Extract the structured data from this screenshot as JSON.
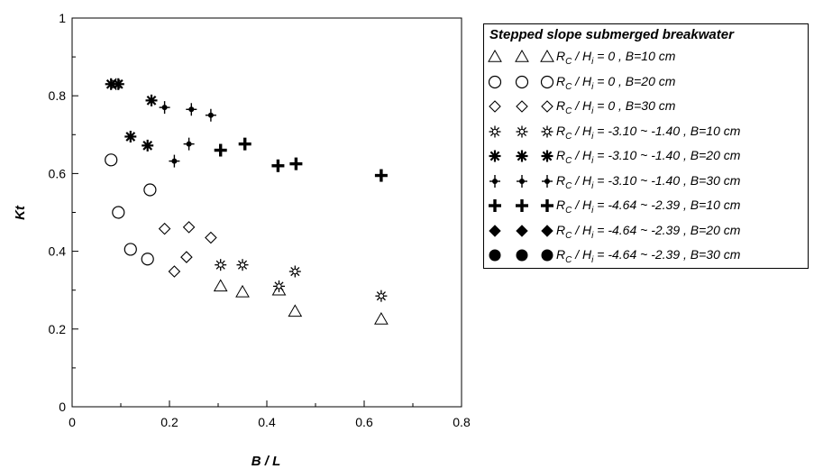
{
  "chart_data": {
    "type": "scatter",
    "title": "",
    "xlabel": "B / L",
    "ylabel": "Kt",
    "xlim": [
      0,
      0.8
    ],
    "ylim": [
      0,
      1
    ],
    "xticks": [
      "0",
      "0.2",
      "0.4",
      "0.6",
      "0.8"
    ],
    "yticks": [
      "0",
      "0.2",
      "0.4",
      "0.6",
      "0.8",
      "1"
    ],
    "grid": false,
    "legend_position": "right",
    "legend_title": "Stepped slope submerged breakwater",
    "series": [
      {
        "name": "Rc / Hi = 0 , B=10 cm",
        "marker": "triangle-open",
        "label": {
          "ratio": "R",
          "sub1": "C",
          "mid": "/ H",
          "sub2": "i",
          "rest": "= 0 , B=10 cm"
        },
        "points": [
          [
            0.305,
            0.31
          ],
          [
            0.35,
            0.295
          ],
          [
            0.425,
            0.3
          ],
          [
            0.458,
            0.245
          ],
          [
            0.635,
            0.225
          ]
        ]
      },
      {
        "name": "Rc / Hi = 0 , B=20 cm",
        "marker": "circle-open",
        "label": {
          "ratio": "R",
          "sub1": "C",
          "mid": "/ H",
          "sub2": "i",
          "rest": "= 0 , B=20 cm"
        },
        "points": [
          [
            0.08,
            0.635
          ],
          [
            0.095,
            0.5
          ],
          [
            0.12,
            0.405
          ],
          [
            0.155,
            0.38
          ],
          [
            0.16,
            0.558
          ]
        ]
      },
      {
        "name": "Rc / Hi = 0 , B=30 cm",
        "marker": "diamond-open",
        "label": {
          "ratio": "R",
          "sub1": "C",
          "mid": "/ H",
          "sub2": "i",
          "rest": "= 0 , B=30 cm"
        },
        "points": [
          [
            0.19,
            0.458
          ],
          [
            0.21,
            0.348
          ],
          [
            0.235,
            0.385
          ],
          [
            0.24,
            0.462
          ],
          [
            0.285,
            0.435
          ]
        ]
      },
      {
        "name": "Rc / Hi = -3.10 ~ -1.40 , B=10 cm",
        "marker": "asterisk-light",
        "label": {
          "ratio": "R",
          "sub1": "C",
          "mid": "/ H",
          "sub2": "i",
          "rest": "= -3.10 ~ -1.40 , B=10 cm"
        },
        "points": [
          [
            0.09,
            0.83
          ],
          [
            0.305,
            0.365
          ],
          [
            0.35,
            0.365
          ],
          [
            0.425,
            0.31
          ],
          [
            0.458,
            0.348
          ],
          [
            0.635,
            0.285
          ]
        ]
      },
      {
        "name": "Rc / Hi = -3.10 ~ -1.40 , B=20 cm",
        "marker": "asterisk-bold",
        "label": {
          "ratio": "R",
          "sub1": "C",
          "mid": "/ H",
          "sub2": "i",
          "rest": "= -3.10 ~ -1.40 , B=20 cm"
        },
        "points": [
          [
            0.08,
            0.83
          ],
          [
            0.095,
            0.83
          ],
          [
            0.12,
            0.695
          ],
          [
            0.155,
            0.672
          ],
          [
            0.163,
            0.788
          ]
        ]
      },
      {
        "name": "Rc / Hi = -3.10 ~ -1.40 , B=30 cm",
        "marker": "plus-dot",
        "label": {
          "ratio": "R",
          "sub1": "C",
          "mid": "/ H",
          "sub2": "i",
          "rest": "= -3.10 ~ -1.40 , B=30 cm"
        },
        "points": [
          [
            0.19,
            0.77
          ],
          [
            0.21,
            0.632
          ],
          [
            0.24,
            0.676
          ],
          [
            0.245,
            0.765
          ],
          [
            0.285,
            0.75
          ]
        ]
      },
      {
        "name": "Rc / Hi = -4.64 ~ -2.39 , B=10 cm",
        "marker": "plus-bold",
        "label": {
          "ratio": "R",
          "sub1": "C",
          "mid": "/ H",
          "sub2": "i",
          "rest": "= -4.64 ~ -2.39 , B=10 cm"
        },
        "points": [
          [
            0.305,
            0.66
          ],
          [
            0.355,
            0.676
          ],
          [
            0.423,
            0.62
          ],
          [
            0.46,
            0.625
          ],
          [
            0.635,
            0.595
          ]
        ]
      },
      {
        "name": "Rc / Hi = -4.64 ~ -2.39 , B=20 cm",
        "marker": "diamond-filled",
        "label": {
          "ratio": "R",
          "sub1": "C",
          "mid": "/ H",
          "sub2": "i",
          "rest": "= -4.64 ~ -2.39 , B=20 cm"
        },
        "points": []
      },
      {
        "name": "Rc / Hi = -4.64 ~ -2.39 , B=30 cm",
        "marker": "circle-filled",
        "label": {
          "ratio": "R",
          "sub1": "C",
          "mid": "/ H",
          "sub2": "i",
          "rest": "= -4.64 ~ -2.39 , B=30 cm"
        },
        "points": []
      }
    ]
  }
}
